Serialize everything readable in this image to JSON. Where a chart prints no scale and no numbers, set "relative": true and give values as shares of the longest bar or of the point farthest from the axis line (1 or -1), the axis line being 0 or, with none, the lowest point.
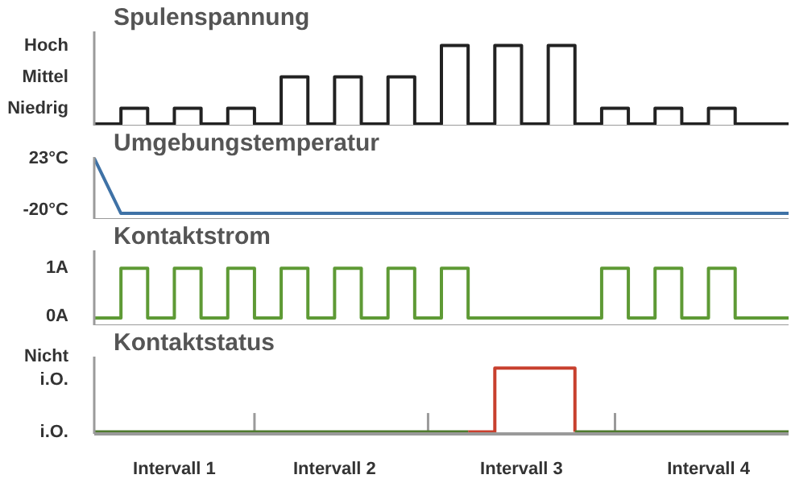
{
  "chart_data": [
    {
      "type": "step",
      "title": "Spulenspannung",
      "relative": true,
      "tick_labels": "y",
      "categories": [
        null,
        null,
        null,
        null,
        null,
        null,
        null,
        null,
        null,
        null,
        null,
        null,
        null,
        null,
        null,
        null,
        null,
        null,
        null,
        null,
        null,
        null,
        null,
        null,
        null,
        null,
        null
      ],
      "annotations": [
        "Niedrig",
        "Mittel",
        "Hoch"
      ],
      "series": [
        {
          "color": "#222222",
          "values": [
            0,
            0.2,
            0,
            0.2,
            0,
            0.2,
            0,
            0.6,
            0,
            0.6,
            0,
            0.6,
            0,
            1,
            0,
            1,
            0,
            1,
            0,
            0.2,
            0,
            0.2,
            0,
            0.2,
            0,
            0,
            0
          ]
        }
      ]
    },
    {
      "type": "line",
      "title": "Umgebungstemperatur",
      "ylim": [
        -25,
        24
      ],
      "tick_labels": "y",
      "yticks": [
        {
          "value": -20,
          "label": "-20°C"
        },
        {
          "value": 23,
          "label": "23°C"
        }
      ],
      "categories": [
        null,
        null,
        null,
        null,
        null,
        null,
        null,
        null,
        null,
        null,
        null,
        null,
        null,
        null,
        null,
        null,
        null,
        null,
        null,
        null,
        null,
        null,
        null,
        null,
        null,
        null,
        null
      ],
      "series": [
        {
          "color": "#3f72a6",
          "values": [
            23,
            -20,
            -20,
            -20,
            -20,
            -20,
            -20,
            -20,
            -20,
            -20,
            -20,
            -20,
            -20,
            -20,
            -20,
            -20,
            -20,
            -20,
            -20,
            -20,
            -20,
            -20,
            -20,
            -20,
            -20,
            -20,
            -20
          ]
        }
      ]
    },
    {
      "type": "step",
      "title": "Kontaktstrom",
      "ylim": [
        -0.16,
        1.36
      ],
      "tick_labels": "y",
      "yticks": [
        {
          "value": 0,
          "label": "0A"
        },
        {
          "value": 1,
          "label": "1A"
        }
      ],
      "categories": [
        null,
        null,
        null,
        null,
        null,
        null,
        null,
        null,
        null,
        null,
        null,
        null,
        null,
        null,
        null,
        null,
        null,
        null,
        null,
        null,
        null,
        null,
        null,
        null,
        null,
        null,
        null
      ],
      "series": [
        {
          "color": "#5e9a35",
          "values": [
            0,
            1,
            0,
            1,
            0,
            1,
            0,
            1,
            0,
            1,
            0,
            1,
            0,
            1,
            0,
            0,
            0,
            0,
            0,
            1,
            0,
            1,
            0,
            1,
            0,
            0,
            0
          ]
        }
      ]
    },
    {
      "type": "step",
      "title": "Kontaktstatus",
      "relative": true,
      "categories": [
        null,
        null,
        null,
        "Intervall 1",
        null,
        null,
        null,
        null,
        null,
        "Intervall 2",
        null,
        null,
        null,
        null,
        null,
        null,
        "Intervall 3",
        null,
        null,
        null,
        null,
        null,
        null,
        "Intervall 4",
        null,
        null,
        null
      ],
      "annotations": [
        "i.O.",
        "Nicht\ni.O."
      ],
      "series": [
        {
          "color": "#c8402e",
          "values": [
            null,
            null,
            null,
            null,
            null,
            null,
            null,
            null,
            null,
            null,
            null,
            null,
            null,
            null,
            0,
            1,
            1,
            1,
            0,
            null,
            null,
            null,
            null,
            null,
            null,
            null,
            null
          ]
        },
        {
          "color": "#4f7a2e",
          "values": [
            0,
            0,
            0,
            0,
            0,
            0,
            0,
            0,
            0,
            0,
            0,
            0,
            0,
            0,
            0,
            null,
            null,
            null,
            0,
            0,
            0,
            0,
            0,
            0,
            0,
            0,
            0
          ]
        }
      ]
    }
  ]
}
